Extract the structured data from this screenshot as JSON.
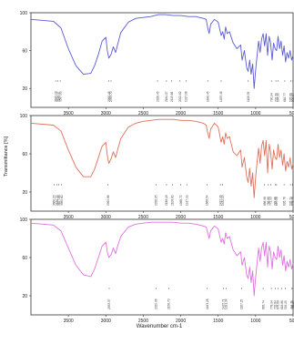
{
  "chart_data": [
    {
      "type": "line",
      "ytick_labels": [
        "100",
        "60",
        "20"
      ],
      "ylim": [
        0,
        100
      ],
      "xlim": [
        4000,
        500
      ],
      "xtick_labels": [
        "3500",
        "3000",
        "2500",
        "2000",
        "1500",
        "1000",
        "500"
      ],
      "series": [
        {
          "color": "#5a5ad6",
          "x": [
            4000,
            3700,
            3600,
            3500,
            3400,
            3300,
            3200,
            3150,
            3100,
            3050,
            3000,
            2980,
            2960,
            2930,
            2900,
            2870,
            2850,
            2800,
            2700,
            2600,
            2500,
            2400,
            2300,
            2200,
            2100,
            2000,
            1900,
            1800,
            1750,
            1700,
            1660,
            1640,
            1620,
            1600,
            1550,
            1500,
            1460,
            1440,
            1420,
            1400,
            1380,
            1350,
            1300,
            1250,
            1200,
            1180,
            1150,
            1120,
            1100,
            1080,
            1060,
            1040,
            1020,
            1000,
            980,
            960,
            940,
            920,
            900,
            880,
            860,
            840,
            820,
            800,
            780,
            760,
            740,
            720,
            700,
            680,
            660,
            640,
            620,
            600,
            580,
            560,
            540,
            520,
            500
          ],
          "y": [
            93,
            91,
            84,
            62,
            44,
            35,
            36,
            44,
            56,
            70,
            74,
            60,
            52,
            56,
            64,
            58,
            64,
            79,
            90,
            94,
            95,
            96,
            98,
            98,
            97,
            97,
            96,
            96,
            95,
            94,
            93,
            84,
            78,
            88,
            93,
            90,
            76,
            80,
            72,
            85,
            78,
            80,
            68,
            62,
            66,
            50,
            60,
            42,
            38,
            50,
            35,
            46,
            20,
            40,
            55,
            70,
            58,
            72,
            78,
            65,
            78,
            55,
            75,
            68,
            50,
            68,
            62,
            60,
            75,
            62,
            70,
            55,
            65,
            48,
            58,
            52,
            60,
            50,
            55
          ]
        }
      ],
      "peak_labels": [
        {
          "x": 3670,
          "text": "3645.93"
        },
        {
          "x": 3640,
          "text": "3616.47"
        },
        {
          "x": 3610,
          "text": "3587.00"
        },
        {
          "x": 2960,
          "text": "2960.46"
        },
        {
          "x": 2930,
          "text": "2933.70"
        },
        {
          "x": 2310,
          "text": "2326.45"
        },
        {
          "x": 2190,
          "text": "2184.07"
        },
        {
          "x": 2120,
          "text": "2115.66"
        },
        {
          "x": 2010,
          "text": "2022.62"
        },
        {
          "x": 1930,
          "text": "1917.08"
        },
        {
          "x": 1640,
          "text": "1640.45"
        },
        {
          "x": 1460,
          "text": "1455.46"
        },
        {
          "x": 1100,
          "text": "1106.33"
        },
        {
          "x": 790,
          "text": "790.94"
        },
        {
          "x": 730,
          "text": "732.30"
        },
        {
          "x": 700,
          "text": "694.99"
        },
        {
          "x": 610,
          "text": "616.77"
        },
        {
          "x": 530,
          "text": "535.66"
        },
        {
          "x": 505,
          "text": "509.67"
        }
      ]
    },
    {
      "type": "line",
      "ylabel": "Transmittance [%]",
      "ytick_labels": [
        "100",
        "60",
        "20"
      ],
      "ylim": [
        0,
        100
      ],
      "xlim": [
        4000,
        500
      ],
      "xtick_labels": [
        "3500",
        "3000",
        "2500",
        "2000",
        "1500",
        "1000",
        "500"
      ],
      "series": [
        {
          "color": "#e0705a",
          "x": [
            4000,
            3700,
            3600,
            3500,
            3400,
            3300,
            3200,
            3150,
            3100,
            3050,
            3000,
            2980,
            2960,
            2930,
            2900,
            2870,
            2850,
            2800,
            2700,
            2600,
            2500,
            2400,
            2300,
            2200,
            2100,
            2000,
            1900,
            1800,
            1750,
            1700,
            1660,
            1640,
            1620,
            1600,
            1550,
            1500,
            1460,
            1440,
            1420,
            1400,
            1380,
            1350,
            1300,
            1250,
            1200,
            1180,
            1150,
            1120,
            1100,
            1080,
            1060,
            1040,
            1020,
            1000,
            980,
            960,
            940,
            920,
            900,
            880,
            860,
            840,
            820,
            800,
            780,
            760,
            740,
            720,
            700,
            680,
            660,
            640,
            620,
            600,
            580,
            560,
            540,
            520,
            500
          ],
          "y": [
            92,
            90,
            84,
            64,
            46,
            36,
            36,
            44,
            56,
            68,
            72,
            58,
            50,
            55,
            62,
            56,
            62,
            76,
            88,
            92,
            94,
            95,
            96,
            96,
            96,
            95,
            95,
            94,
            93,
            92,
            90,
            82,
            76,
            86,
            92,
            88,
            72,
            78,
            70,
            82,
            76,
            78,
            62,
            58,
            64,
            46,
            56,
            36,
            30,
            45,
            26,
            40,
            14,
            36,
            52,
            66,
            50,
            68,
            74,
            58,
            74,
            40,
            70,
            62,
            44,
            64,
            56,
            54,
            70,
            56,
            64,
            48,
            60,
            42,
            52,
            46,
            56,
            44,
            50
          ]
        }
      ],
      "peak_labels": [
        {
          "x": 3690,
          "text": "3660.20"
        },
        {
          "x": 3650,
          "text": "3636.33"
        },
        {
          "x": 3627,
          "text": "3627.88"
        },
        {
          "x": 3590,
          "text": "3589.60"
        },
        {
          "x": 2970,
          "text": "2969.86"
        },
        {
          "x": 2330,
          "text": "2326.05"
        },
        {
          "x": 2190,
          "text": "2188.18"
        },
        {
          "x": 2110,
          "text": "2108.60"
        },
        {
          "x": 2000,
          "text": "1988.72"
        },
        {
          "x": 1920,
          "text": "1917.99"
        },
        {
          "x": 1650,
          "text": "1666.54"
        },
        {
          "x": 1470,
          "text": "1437.96"
        },
        {
          "x": 1440,
          "text": "1432.13"
        },
        {
          "x": 880,
          "text": "886.98"
        },
        {
          "x": 830,
          "text": "788.88"
        },
        {
          "x": 800,
          "text": "772.93"
        },
        {
          "x": 740,
          "text": "732.06"
        },
        {
          "x": 720,
          "text": "697.50"
        },
        {
          "x": 620,
          "text": "626.76"
        },
        {
          "x": 535,
          "text": "535.79"
        },
        {
          "x": 508,
          "text": "508.76"
        }
      ]
    },
    {
      "type": "line",
      "xlabel": "Wavenumber cm-1",
      "ytick_labels": [
        "100",
        "60",
        "20"
      ],
      "ylim": [
        0,
        100
      ],
      "xlim": [
        4000,
        500
      ],
      "xtick_labels": [
        "3500",
        "3000",
        "2500",
        "2000",
        "1500",
        "1000",
        "500"
      ],
      "series": [
        {
          "color": "#e070e0",
          "x": [
            4000,
            3700,
            3600,
            3500,
            3400,
            3300,
            3200,
            3150,
            3100,
            3050,
            3000,
            2980,
            2960,
            2930,
            2900,
            2870,
            2850,
            2800,
            2700,
            2600,
            2500,
            2400,
            2300,
            2200,
            2100,
            2000,
            1900,
            1800,
            1750,
            1700,
            1660,
            1640,
            1620,
            1600,
            1550,
            1500,
            1460,
            1440,
            1420,
            1400,
            1380,
            1350,
            1300,
            1250,
            1200,
            1180,
            1150,
            1120,
            1100,
            1080,
            1060,
            1040,
            1020,
            1000,
            980,
            960,
            940,
            920,
            900,
            880,
            860,
            840,
            820,
            800,
            780,
            760,
            740,
            720,
            700,
            680,
            660,
            640,
            620,
            600,
            580,
            560,
            540,
            520,
            500
          ],
          "y": [
            96,
            94,
            88,
            70,
            52,
            42,
            40,
            48,
            60,
            72,
            76,
            66,
            60,
            63,
            70,
            64,
            70,
            82,
            92,
            95,
            96,
            97,
            97,
            97,
            97,
            96,
            96,
            95,
            94,
            93,
            92,
            86,
            80,
            88,
            93,
            90,
            76,
            80,
            74,
            86,
            80,
            82,
            68,
            62,
            66,
            52,
            60,
            42,
            38,
            50,
            34,
            46,
            20,
            40,
            55,
            70,
            56,
            70,
            76,
            62,
            76,
            50,
            72,
            66,
            48,
            66,
            60,
            58,
            72,
            60,
            68,
            52,
            62,
            46,
            56,
            50,
            58,
            48,
            54
          ]
        }
      ],
      "peak_labels": [
        {
          "x": 2955,
          "text": "2955.37"
        },
        {
          "x": 2330,
          "text": "2329.08"
        },
        {
          "x": 2160,
          "text": "2156.70"
        },
        {
          "x": 1645,
          "text": "1643.28"
        },
        {
          "x": 1430,
          "text": "1425.71"
        },
        {
          "x": 1395,
          "text": "1391.34"
        },
        {
          "x": 1190,
          "text": "1167.25"
        },
        {
          "x": 900,
          "text": "883.74"
        },
        {
          "x": 790,
          "text": "778.94"
        },
        {
          "x": 740,
          "text": "732.84"
        },
        {
          "x": 700,
          "text": "676.68"
        },
        {
          "x": 650,
          "text": "618.86"
        },
        {
          "x": 600,
          "text": "599.25"
        },
        {
          "x": 520,
          "text": "494.71"
        },
        {
          "x": 505,
          "text": "482.27"
        }
      ]
    }
  ]
}
